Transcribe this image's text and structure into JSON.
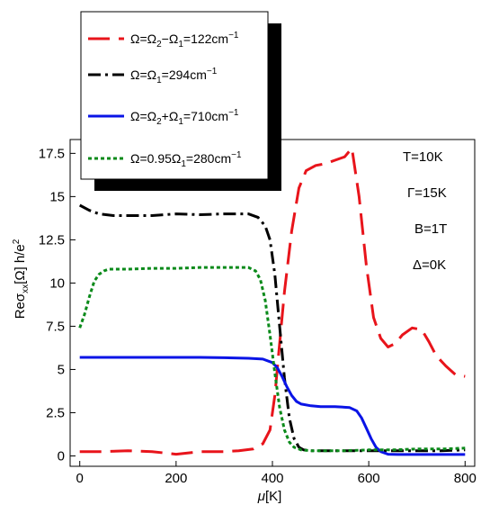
{
  "chart_data": {
    "type": "line",
    "title": "",
    "xlabel_symbol": "μ",
    "xlabel_unit": "[K]",
    "ylabel_base": "Reσ",
    "ylabel_sub": "xx",
    "ylabel_arg": "[Ω] h/e",
    "ylabel_sup": "2",
    "xlim": [
      -20,
      820
    ],
    "ylim": [
      -0.6,
      18.3
    ],
    "x_ticks": [
      0,
      200,
      400,
      600,
      800
    ],
    "x_tick_labels": [
      "0",
      "200",
      "400",
      "600",
      "800"
    ],
    "y_ticks": [
      0,
      2.5,
      5,
      7.5,
      10,
      12.5,
      15,
      17.5
    ],
    "y_tick_labels": [
      "0",
      "2.5",
      "5",
      "7.5",
      "10",
      "12.5",
      "15",
      "17.5"
    ],
    "grid": false,
    "legend_position": "top-left",
    "annotations": [
      "T=10K",
      "Γ=15K",
      "B=1T",
      "Δ=0K"
    ],
    "series": [
      {
        "name": "Ω=Ω2−Ω1=122cm−1",
        "legend": {
          "pre": "Ω=Ω",
          "s1": "2",
          "mid": "−Ω",
          "s2": "1",
          "post": "=122cm",
          "sup": "−1"
        },
        "color": "#e8141b",
        "dash": "24,10",
        "x": [
          0,
          50,
          100,
          150,
          200,
          250,
          300,
          330,
          360,
          380,
          395,
          405,
          415,
          425,
          440,
          455,
          470,
          490,
          510,
          530,
          550,
          565,
          580,
          595,
          610,
          625,
          640,
          655,
          670,
          690,
          710,
          725,
          740,
          760,
          780,
          800
        ],
        "y": [
          0.25,
          0.25,
          0.3,
          0.25,
          0.1,
          0.25,
          0.25,
          0.3,
          0.4,
          0.7,
          1.5,
          3.5,
          6.5,
          9.5,
          13,
          15.5,
          16.5,
          16.8,
          16.9,
          17.1,
          17.3,
          17.8,
          15,
          11,
          8,
          6.8,
          6.3,
          6.5,
          7,
          7.4,
          7.3,
          6.6,
          5.8,
          5.2,
          4.7,
          4.6
        ]
      },
      {
        "name": "Ω=Ω1=294cm−1",
        "legend": {
          "pre": "Ω=Ω",
          "s1": "1",
          "mid": "",
          "s2": "",
          "post": "=294cm",
          "sup": "−1"
        },
        "color": "#000000",
        "dash": "14,5,3,5",
        "x": [
          0,
          20,
          40,
          70,
          100,
          150,
          200,
          250,
          300,
          350,
          370,
          385,
          395,
          405,
          415,
          425,
          435,
          445,
          455,
          465,
          480,
          500,
          550,
          600,
          650,
          700,
          750,
          800
        ],
        "y": [
          14.5,
          14.2,
          14,
          13.9,
          13.9,
          13.9,
          14,
          13.95,
          14,
          14,
          13.8,
          13.3,
          12.5,
          10.5,
          7.5,
          4.5,
          2.2,
          1,
          0.5,
          0.35,
          0.3,
          0.3,
          0.3,
          0.3,
          0.3,
          0.3,
          0.3,
          0.35
        ]
      },
      {
        "name": "Ω=Ω2+Ω1=710cm−1",
        "legend": {
          "pre": "Ω=Ω",
          "s1": "2",
          "mid": "+Ω",
          "s2": "1",
          "post": "=710cm",
          "sup": "−1"
        },
        "color": "#0a14e6",
        "dash": "",
        "x": [
          0,
          50,
          100,
          150,
          200,
          250,
          300,
          350,
          380,
          400,
          410,
          420,
          430,
          440,
          450,
          460,
          480,
          500,
          530,
          560,
          575,
          585,
          595,
          605,
          615,
          625,
          640,
          660,
          700,
          750,
          800
        ],
        "y": [
          5.7,
          5.7,
          5.7,
          5.7,
          5.7,
          5.7,
          5.68,
          5.65,
          5.6,
          5.4,
          5.1,
          4.6,
          4,
          3.5,
          3.15,
          3,
          2.9,
          2.85,
          2.85,
          2.8,
          2.6,
          2.2,
          1.6,
          1,
          0.5,
          0.25,
          0.1,
          0.08,
          0.08,
          0.08,
          0.08
        ]
      },
      {
        "name": "Ω=0.95Ω1=280cm−1",
        "legend": {
          "pre": "Ω=0.95Ω",
          "s1": "1",
          "mid": "",
          "s2": "",
          "post": "=280cm",
          "sup": "−1"
        },
        "color": "#0a8a1a",
        "dash": "4,3",
        "x": [
          0,
          10,
          20,
          30,
          40,
          50,
          60,
          80,
          100,
          150,
          200,
          250,
          300,
          350,
          365,
          375,
          385,
          395,
          405,
          415,
          425,
          435,
          445,
          460,
          480,
          500,
          550,
          600,
          650,
          700,
          750,
          800
        ],
        "y": [
          7.4,
          8.2,
          9.2,
          10.1,
          10.5,
          10.7,
          10.8,
          10.8,
          10.8,
          10.85,
          10.85,
          10.9,
          10.9,
          10.9,
          10.7,
          10.2,
          9,
          7,
          4.8,
          2.8,
          1.5,
          0.8,
          0.5,
          0.35,
          0.3,
          0.3,
          0.3,
          0.35,
          0.35,
          0.4,
          0.4,
          0.45
        ]
      }
    ]
  }
}
